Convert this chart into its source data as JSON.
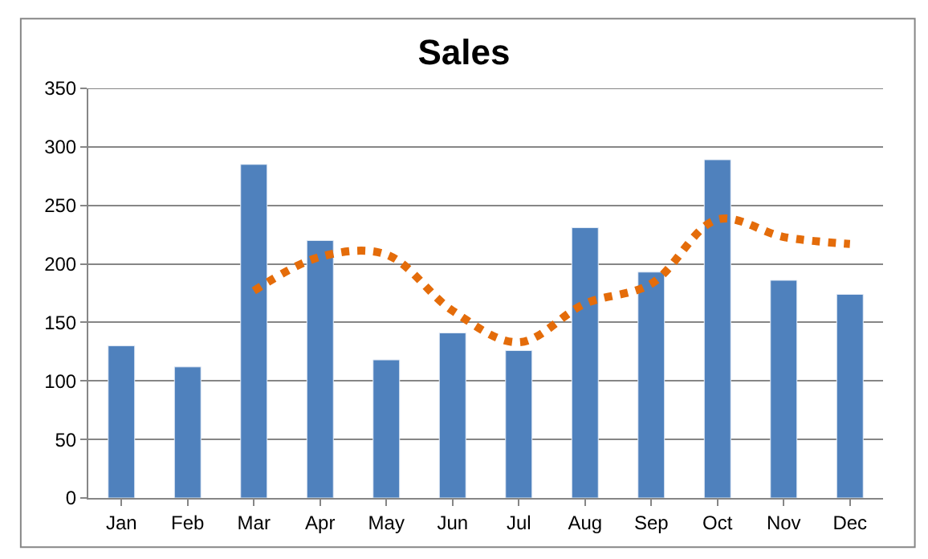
{
  "chart_data": {
    "type": "bar",
    "title": "Sales",
    "categories": [
      "Jan",
      "Feb",
      "Mar",
      "Apr",
      "May",
      "Jun",
      "Jul",
      "Aug",
      "Sep",
      "Oct",
      "Nov",
      "Dec"
    ],
    "series": [
      {
        "color": "#4f81bd",
        "values": [
          130,
          112,
          285,
          220,
          118,
          141,
          126,
          231,
          193,
          289,
          186,
          174
        ]
      },
      {
        "type": "line",
        "color": "#e46c0a",
        "line_style": "dotted",
        "values": [
          null,
          null,
          177,
          206,
          208,
          160,
          133,
          166,
          183,
          238,
          223,
          217
        ]
      }
    ],
    "ylim": [
      0,
      350
    ],
    "yticks": [
      0,
      50,
      100,
      150,
      200,
      250,
      300,
      350
    ],
    "grid": "y"
  }
}
